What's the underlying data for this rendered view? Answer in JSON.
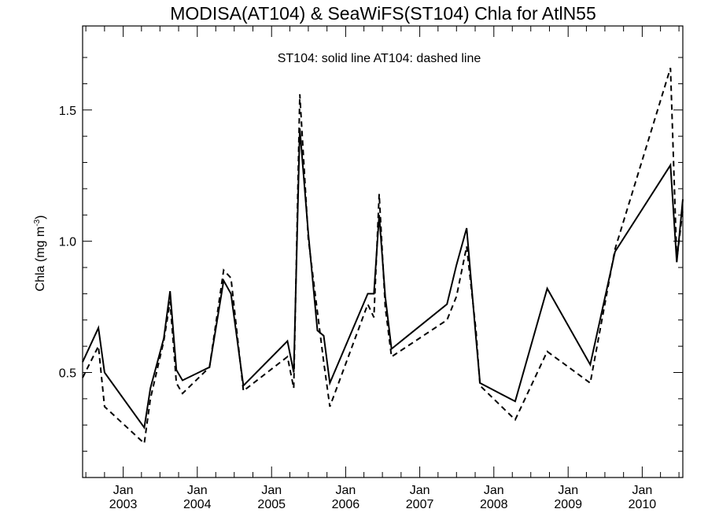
{
  "chart_data": {
    "type": "line",
    "title": "MODISA(AT104) & SeaWiFS(ST104)  Chla for AtlN55",
    "annotation": "ST104: solid line   AT104: dashed line",
    "ylabel": "Chla (mg m",
    "ylabel_sup": "-3",
    "ylabel_close": ")",
    "xlim": [
      "2002-06-15",
      "2010-07-20"
    ],
    "ylim": [
      0.1,
      1.82
    ],
    "yticks": [
      0.5,
      1.0,
      1.5
    ],
    "ytick_labels": [
      "0.5",
      "1.0",
      "1.5"
    ],
    "xticks": [
      {
        "date": "2003-01-01",
        "month": "Jan",
        "year": "2003"
      },
      {
        "date": "2004-01-01",
        "month": "Jan",
        "year": "2004"
      },
      {
        "date": "2005-01-01",
        "month": "Jan",
        "year": "2005"
      },
      {
        "date": "2006-01-01",
        "month": "Jan",
        "year": "2006"
      },
      {
        "date": "2007-01-01",
        "month": "Jan",
        "year": "2007"
      },
      {
        "date": "2008-01-01",
        "month": "Jan",
        "year": "2008"
      },
      {
        "date": "2009-01-01",
        "month": "Jan",
        "year": "2009"
      },
      {
        "date": "2010-01-01",
        "month": "Jan",
        "year": "2010"
      }
    ],
    "grid": false,
    "series": [
      {
        "name": "ST104",
        "style": "solid",
        "color": "#000000",
        "points": [
          [
            "2002-06-15",
            0.54
          ],
          [
            "2002-09-01",
            0.67
          ],
          [
            "2002-10-01",
            0.5
          ],
          [
            "2003-04-15",
            0.29
          ],
          [
            "2003-05-15",
            0.44
          ],
          [
            "2003-07-20",
            0.63
          ],
          [
            "2003-08-20",
            0.81
          ],
          [
            "2003-09-20",
            0.51
          ],
          [
            "2003-10-20",
            0.47
          ],
          [
            "2004-03-01",
            0.52
          ],
          [
            "2004-05-10",
            0.85
          ],
          [
            "2004-06-15",
            0.8
          ],
          [
            "2004-08-15",
            0.45
          ],
          [
            "2005-03-20",
            0.62
          ],
          [
            "2005-04-20",
            0.5
          ],
          [
            "2005-05-20",
            1.43
          ],
          [
            "2005-07-01",
            1.03
          ],
          [
            "2005-08-15",
            0.66
          ],
          [
            "2005-09-15",
            0.64
          ],
          [
            "2005-10-15",
            0.46
          ],
          [
            "2006-04-20",
            0.8
          ],
          [
            "2006-05-20",
            0.8
          ],
          [
            "2006-06-15",
            1.1
          ],
          [
            "2006-07-15",
            0.79
          ],
          [
            "2006-08-15",
            0.59
          ],
          [
            "2007-05-15",
            0.76
          ],
          [
            "2007-07-01",
            0.91
          ],
          [
            "2007-08-20",
            1.05
          ],
          [
            "2007-10-05",
            0.63
          ],
          [
            "2007-10-25",
            0.46
          ],
          [
            "2008-04-15",
            0.39
          ],
          [
            "2008-09-20",
            0.82
          ],
          [
            "2009-04-20",
            0.53
          ],
          [
            "2009-08-20",
            0.96
          ],
          [
            "2010-05-20",
            1.29
          ],
          [
            "2010-06-20",
            0.92
          ],
          [
            "2010-07-20",
            1.16
          ]
        ]
      },
      {
        "name": "AT104",
        "style": "dashed",
        "color": "#000000",
        "points": [
          [
            "2002-06-15",
            0.48
          ],
          [
            "2002-09-01",
            0.6
          ],
          [
            "2002-10-01",
            0.37
          ],
          [
            "2003-04-15",
            0.23
          ],
          [
            "2003-05-15",
            0.4
          ],
          [
            "2003-07-20",
            0.62
          ],
          [
            "2003-08-20",
            0.77
          ],
          [
            "2003-09-20",
            0.46
          ],
          [
            "2003-10-20",
            0.42
          ],
          [
            "2004-03-01",
            0.52
          ],
          [
            "2004-05-10",
            0.89
          ],
          [
            "2004-06-15",
            0.86
          ],
          [
            "2004-08-15",
            0.43
          ],
          [
            "2005-03-20",
            0.56
          ],
          [
            "2005-04-20",
            0.44
          ],
          [
            "2005-05-20",
            1.56
          ],
          [
            "2005-07-01",
            1.01
          ],
          [
            "2005-08-15",
            0.73
          ],
          [
            "2005-09-15",
            0.54
          ],
          [
            "2005-10-15",
            0.37
          ],
          [
            "2006-04-20",
            0.76
          ],
          [
            "2006-05-20",
            0.71
          ],
          [
            "2006-06-15",
            1.18
          ],
          [
            "2006-07-15",
            0.75
          ],
          [
            "2006-08-15",
            0.56
          ],
          [
            "2007-05-15",
            0.7
          ],
          [
            "2007-07-01",
            0.79
          ],
          [
            "2007-08-20",
            0.98
          ],
          [
            "2007-10-05",
            0.66
          ],
          [
            "2007-10-25",
            0.45
          ],
          [
            "2008-04-15",
            0.32
          ],
          [
            "2008-09-20",
            0.58
          ],
          [
            "2009-04-20",
            0.46
          ],
          [
            "2009-08-20",
            0.97
          ],
          [
            "2010-05-20",
            1.66
          ],
          [
            "2010-06-20",
            0.93
          ],
          [
            "2010-07-20",
            1.12
          ]
        ]
      }
    ]
  }
}
